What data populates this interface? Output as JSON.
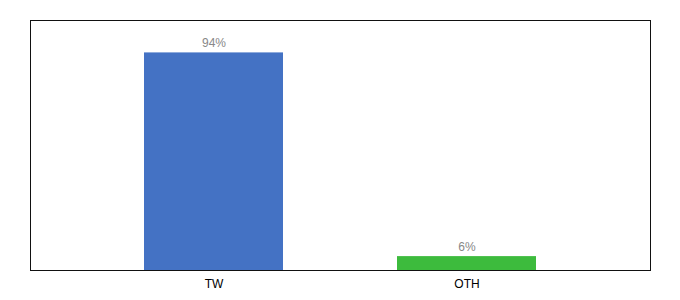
{
  "chart_data": {
    "type": "bar",
    "categories": [
      "TW",
      "OTH"
    ],
    "values": [
      94,
      6
    ],
    "value_labels": [
      "94%",
      "6%"
    ],
    "colors": [
      "#4472c4",
      "#3dbb3d"
    ],
    "ylim": [
      0,
      108
    ],
    "data_labels": true,
    "tick_labels": "x"
  }
}
